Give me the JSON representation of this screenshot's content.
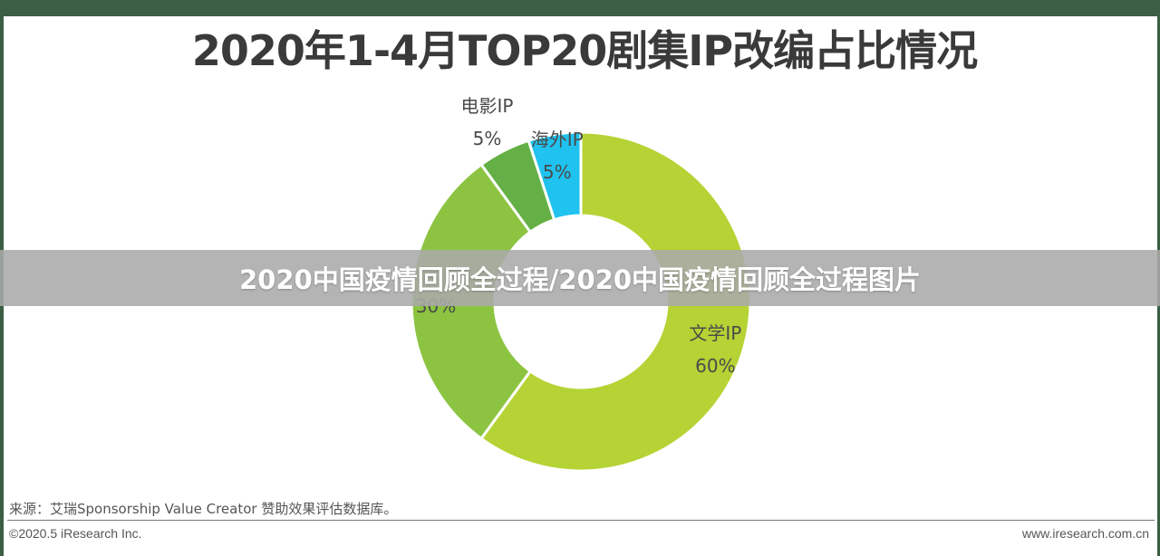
{
  "title": "2020年1-4月TOP20剧集IP改编占比情况",
  "overlay_banner": "2020中国疫情回顾全过程/2020中国疫情回顾全过程图片",
  "source_note": "来源：艾瑞Sponsorship Value Creator 赞助效果评估数据库。",
  "footer": {
    "copyright": "©2020.5 iResearch Inc.",
    "website": "www.iresearch.com.cn"
  },
  "colors": {
    "frame": "#3b5e44",
    "title": "#3a3a3a",
    "label": "#4a4a4a"
  },
  "chart_data": {
    "type": "pie",
    "variant": "donut",
    "title": "2020年1-4月TOP20剧集IP改编占比情况",
    "start_angle_deg": 0,
    "direction": "clockwise",
    "slices": [
      {
        "label": "文学IP",
        "value": 60,
        "value_label": "60%",
        "color": "#b5d334"
      },
      {
        "label": "",
        "value": 30,
        "value_label": "30%",
        "color": "#8cc441"
      },
      {
        "label": "电影IP",
        "value": 5,
        "value_label": "5%",
        "color": "#64b046"
      },
      {
        "label": "海外IP",
        "value": 5,
        "value_label": "5%",
        "color": "#20c2ef"
      }
    ]
  }
}
